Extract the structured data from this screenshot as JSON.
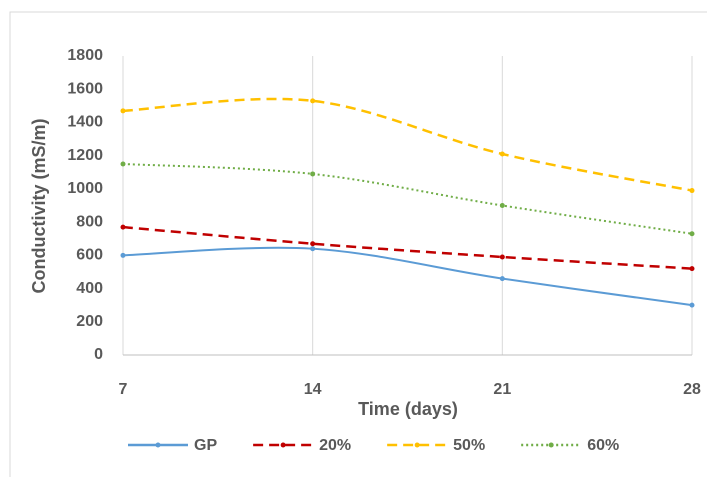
{
  "chart_data": {
    "type": "line",
    "x_label": "Time (days)",
    "y_label": "Conductivity (mS/m)",
    "x": [
      7,
      14,
      21,
      28
    ],
    "xlim": [
      7,
      28
    ],
    "xticks": [
      7,
      14,
      21,
      28
    ],
    "ylim": [
      0,
      1800
    ],
    "yticks": [
      0,
      200,
      400,
      600,
      800,
      1000,
      1200,
      1400,
      1600,
      1800
    ],
    "grid": "x",
    "legend": "bottom",
    "smooth": true,
    "series": [
      {
        "name": "GP",
        "color": "#5b9bd5",
        "dash": "solid",
        "values": [
          600,
          640,
          460,
          300
        ]
      },
      {
        "name": "20%",
        "color": "#c00000",
        "dash": "dashed",
        "values": [
          770,
          670,
          590,
          520
        ]
      },
      {
        "name": "50%",
        "color": "#ffc000",
        "dash": "dashed",
        "values": [
          1470,
          1530,
          1210,
          990
        ]
      },
      {
        "name": "60%",
        "color": "#70ad47",
        "dash": "dotted",
        "values": [
          1150,
          1090,
          900,
          730
        ]
      }
    ]
  }
}
